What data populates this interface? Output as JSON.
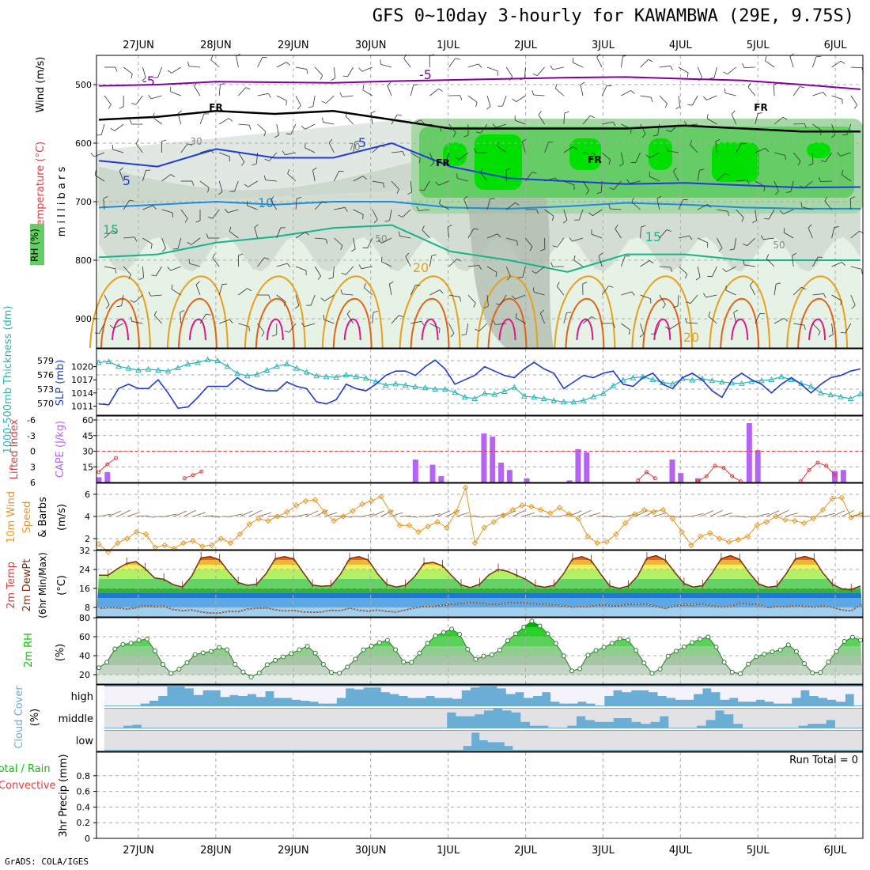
{
  "title": "GFS 0~10day 3-hourly for KAWAMBWA (29E, 9.75S)",
  "footer": "GrADS: COLA/IGES",
  "dates": [
    "27JUN",
    "28JUN",
    "29JUN",
    "30JUN",
    "1JUL",
    "2JUL",
    "3JUL",
    "4JUL",
    "5JUL",
    "6JUL"
  ],
  "colors": {
    "rh_dark": "#00e000",
    "rh_mid": "#66cc66",
    "rh_light": "#a8d8a8",
    "grey1": "#c8d4c8",
    "grey2": "#a9b8a9",
    "temp_m5": "#8000a0",
    "temp_5": "#1e3cdc",
    "temp_10": "#1e8cdc",
    "temp_15": "#14b48c",
    "temp_20": "#e6a01e",
    "temp_25": "#e06414",
    "temp_30": "#e0148c",
    "slp": "#1e3cc8",
    "thick": "#2ab4b4",
    "cape": "#b464f0",
    "li": "#e03c3c",
    "wind": "#e6961e",
    "barb": "#806040",
    "cloud": "#6aaed6",
    "rh2m": "#00c800"
  },
  "chart_data": [
    {
      "id": "cross-section",
      "type": "heatmap",
      "ylabel": "(millibars)",
      "side_labels": [
        "Wind (m/s)",
        "Temperature (°C)",
        "RH (%)"
      ],
      "y_ticks": [
        500,
        600,
        700,
        800,
        900
      ],
      "ylim": [
        450,
        950
      ],
      "y_scale": "linear-inverted",
      "contour_labels": [
        "-5",
        "5",
        "10",
        "15",
        "20",
        "FR",
        "30",
        "50",
        "70"
      ],
      "isotherm_levels_mb": {
        "-5": [
          502,
          500,
          495,
          496,
          497,
          494,
          492,
          490,
          488,
          487,
          490,
          493,
          500,
          508
        ],
        "5": [
          630,
          640,
          610,
          625,
          625,
          600,
          640,
          660,
          665,
          670,
          668,
          672,
          676,
          675
        ],
        "10": [
          710,
          705,
          700,
          705,
          700,
          700,
          710,
          712,
          708,
          702,
          705,
          710,
          712,
          712
        ],
        "15": [
          795,
          790,
          770,
          760,
          745,
          740,
          785,
          800,
          820,
          790,
          790,
          800,
          800,
          800
        ],
        "FR": [
          560,
          555,
          545,
          550,
          545,
          560,
          575,
          575,
          575,
          575,
          570,
          575,
          580,
          580
        ]
      },
      "x_ticks": [
        "27JUN",
        "28JUN",
        "29JUN",
        "30JUN",
        "1JUL",
        "2JUL",
        "3JUL",
        "4JUL",
        "5JUL",
        "6JUL"
      ]
    },
    {
      "id": "slp-thickness",
      "type": "line",
      "ylabel_left": "1000-500mb Thickness (dm)",
      "ylabel_right": "SLP (mb)",
      "left_ticks": [
        570,
        573,
        576,
        579
      ],
      "right_ticks": [
        1011,
        1014,
        1017,
        1020
      ],
      "series": [
        {
          "name": "SLP",
          "axis": "right",
          "ylim": [
            1010,
            1023
          ],
          "values": [
            1011.5,
            1011.3,
            1015,
            1016,
            1015,
            1015,
            1017,
            1014,
            1010.5,
            1010.8,
            1013,
            1015.5,
            1015.5,
            1015.5,
            1017.5,
            1016,
            1015,
            1014.5,
            1014.5,
            1016.5,
            1015.5,
            1015,
            1012,
            1011.5,
            1012.5,
            1016,
            1015,
            1014.5,
            1016,
            1018,
            1019,
            1019,
            1018,
            1020,
            1021.5,
            1019.5,
            1016,
            1017,
            1018,
            1020,
            1019,
            1018,
            1017.5,
            1019.5,
            1021,
            1019.5,
            1018.5,
            1015,
            1016.5,
            1018,
            1017.5,
            1018.5,
            1019,
            1016,
            1015.5,
            1017.5,
            1018.5,
            1016,
            1015,
            1017.5,
            1018.5,
            1017,
            1014.5,
            1013,
            1017,
            1018.5,
            1017,
            1016,
            1014,
            1016,
            1017.5,
            1016,
            1014,
            1016,
            1017.5,
            1018,
            1019,
            1019.5
          ]
        },
        {
          "name": "Thickness",
          "axis": "left",
          "ylim": [
            568.5,
            580.5
          ],
          "values": [
            578.6,
            578.8,
            577.8,
            577.4,
            577.0,
            577.2,
            577.0,
            576.8,
            577.5,
            578.3,
            578.6,
            579.2,
            579.0,
            577.8,
            576.3,
            575.8,
            576.1,
            577.0,
            577.8,
            578.3,
            577.4,
            576.6,
            575.8,
            575.6,
            575.5,
            576.0,
            575.6,
            575.3,
            574.6,
            573.8,
            574.1,
            573.8,
            573.5,
            573.3,
            573.0,
            573.0,
            572.3,
            571.3,
            571.0,
            572.1,
            571.9,
            572.5,
            573.4,
            571.5,
            571.3,
            571.0,
            570.6,
            570.3,
            570.3,
            570.6,
            571.4,
            572.1,
            573.7,
            574.9,
            575.4,
            575.6,
            575.0,
            574.4,
            574.1,
            575.2,
            574.9,
            575.2,
            574.8,
            574.5,
            574.3,
            574.2,
            574.6,
            574.8,
            575.0,
            575.6,
            575.0,
            574.2,
            573.6,
            572.2,
            571.8,
            571.4,
            571.0,
            572.0
          ]
        }
      ]
    },
    {
      "id": "li-cape",
      "type": "bar",
      "ylabel_left": "Lifted Index",
      "ylabel_right": "CAPE (J/kg)",
      "left_ticks": [
        "-6",
        "-3",
        "0",
        "3",
        "6"
      ],
      "right_ticks": [
        15,
        30,
        45,
        60
      ],
      "cape_ylim": [
        0,
        60
      ],
      "cape_values": [
        5,
        10,
        0,
        0,
        0,
        0,
        0,
        0,
        0,
        0,
        0,
        0,
        0,
        0,
        0,
        0,
        0,
        0,
        0,
        0,
        0,
        0,
        0,
        0,
        0,
        0,
        0,
        0,
        0,
        0,
        0,
        0,
        0,
        0,
        0,
        0,
        0,
        22,
        0,
        17,
        6,
        0,
        0,
        0,
        0,
        47,
        44,
        19,
        12,
        0,
        4,
        0,
        0,
        0,
        0,
        2,
        32,
        29,
        0,
        0,
        0,
        0,
        0,
        0,
        0,
        0,
        0,
        22,
        9,
        0,
        4,
        0,
        0,
        0,
        0,
        0,
        57,
        31,
        0,
        0,
        0,
        0,
        0,
        0,
        0,
        0,
        11,
        12,
        0,
        0
      ],
      "li_ylim": [
        6,
        -6
      ],
      "li_segments": [
        {
          "start": 0,
          "values": [
            4,
            2.5,
            1.3
          ]
        },
        {
          "start": 10,
          "values": [
            5.2,
            4.6,
            3.9
          ]
        },
        {
          "start": 63,
          "values": [
            5.6,
            4,
            5.2
          ]
        },
        {
          "start": 70,
          "values": [
            5.8,
            4.8,
            2.8,
            3.2,
            4.8,
            5.8
          ]
        },
        {
          "start": 82,
          "values": [
            5.8,
            3.6,
            2.2,
            2.8,
            4.6
          ]
        }
      ],
      "zero_line": 0
    },
    {
      "id": "wind10m",
      "type": "line",
      "ylabel": "10m Wind Speed (m/s) & Barbs",
      "y_ticks": [
        2,
        4,
        6
      ],
      "ylim": [
        1,
        7
      ],
      "values": [
        1.5,
        0.8,
        1.6,
        2.0,
        2.6,
        2.4,
        1.2,
        1.4,
        1.1,
        1.6,
        1.8,
        1.3,
        1.4,
        2.0,
        1.6,
        2.4,
        3.3,
        3.8,
        3.6,
        4.0,
        4.4,
        5.0,
        5.4,
        5.5,
        4.4,
        3.6,
        4.0,
        4.5,
        5.1,
        5.4,
        5.8,
        4.4,
        3.2,
        3.2,
        2.6,
        3.1,
        3.5,
        3.0,
        4.4,
        6.6,
        1.6,
        3.0,
        3.5,
        4.1,
        4.6,
        5.0,
        4.9,
        4.6,
        4.3,
        4.8,
        4.2,
        3.8,
        2.2,
        1.6,
        1.7,
        2.4,
        3.4,
        4.2,
        4.6,
        4.4,
        4.6,
        3.8,
        2.6,
        1.4,
        2.2,
        2.5,
        2.0,
        1.7,
        1.9,
        2.2,
        3.2,
        3.5,
        4.0,
        3.7,
        3.6,
        3.4,
        3.8,
        4.6,
        5.6,
        5.7,
        3.9,
        4.2
      ]
    },
    {
      "id": "temp2m",
      "type": "area",
      "ylabel": "2m Temp 2m DewPt (6hr Min/Max) (°C)",
      "y_ticks": [
        8,
        16,
        24,
        32
      ],
      "ylim": [
        4,
        32
      ],
      "temp_values": [
        21.6,
        21.6,
        24.3,
        26.5,
        27.3,
        24.3,
        20.4,
        19.9,
        17.6,
        16.6,
        21.2,
        28.9,
        29.4,
        28.0,
        22.9,
        18.5,
        17.3,
        17.8,
        22.2,
        28.6,
        29.4,
        28.4,
        22.7,
        17.4,
        16.9,
        17.2,
        21.9,
        28.6,
        29.4,
        28.0,
        22.2,
        17.7,
        16.6,
        17.3,
        21.0,
        26.5,
        27.0,
        25.5,
        21.3,
        17.5,
        16.4,
        17.8,
        21.7,
        24.0,
        23.2,
        21.5,
        19.8,
        17.2,
        16.5,
        17.3,
        22.0,
        28.4,
        29.4,
        27.8,
        22.2,
        17.1,
        16.0,
        17.0,
        21.2,
        28.8,
        29.8,
        27.9,
        22.8,
        18.1,
        16.6,
        17.2,
        22.4,
        28.5,
        29.8,
        28.2,
        22.7,
        18.0,
        16.5,
        17.0,
        22.2,
        28.5,
        29.5,
        28.3,
        22.3,
        17.7,
        15.8,
        15.5,
        17.0
      ],
      "dew_values": [
        7.6,
        7.9,
        7.8,
        7.3,
        7.8,
        8.8,
        8.4,
        8.5,
        7.1,
        6.7,
        6.9,
        6.1,
        5.6,
        5.7,
        6.3,
        6.2,
        7.3,
        7.6,
        7.8,
        7.0,
        6.5,
        6.7,
        6.1,
        5.9,
        6.1,
        6.8,
        6.6,
        7.7,
        6.8,
        6.4,
        6.9,
        6.3,
        6.1,
        6.9,
        7.8,
        8.4,
        8.4,
        8.9,
        9.4,
        9.6,
        10.0,
        9.8,
        9.3,
        9.4,
        9.9,
        10.1,
        9.9,
        9.5,
        9.3,
        9.0,
        8.7,
        8.1,
        8.4,
        8.5,
        9.1,
        8.8,
        8.6,
        9.4,
        9.5,
        9.3,
        8.4,
        7.6,
        8.6,
        9.2,
        9.1,
        9.6,
        8.7,
        8.2,
        8.5,
        9.8,
        9.5,
        9.2,
        7.9,
        8.4,
        8.2,
        8.8,
        8.4,
        8.1,
        8.6,
        8.0,
        6.9,
        6.6,
        9.2
      ]
    },
    {
      "id": "rh2m",
      "type": "area",
      "ylabel": "2m RH (%)",
      "y_ticks": [
        20,
        40,
        60,
        80
      ],
      "ylim": [
        10,
        80
      ],
      "values": [
        27.3,
        33.0,
        47.1,
        51.9,
        53.1,
        56.2,
        57.6,
        45.0,
        30.7,
        21.5,
        25.8,
        32.6,
        41.2,
        43.0,
        44.5,
        48.6,
        46.2,
        30.9,
        22.8,
        17.5,
        21.9,
        30.5,
        35.1,
        38.8,
        42.2,
        46.3,
        49.9,
        42.7,
        30.9,
        22.4,
        21.6,
        28.0,
        36.4,
        46.1,
        50.0,
        53.8,
        56.2,
        46.3,
        33.3,
        32.9,
        42.8,
        53.0,
        60.9,
        64.5,
        68.0,
        62.5,
        46.8,
        36.3,
        39.5,
        41.0,
        45.9,
        55.7,
        63.1,
        70.0,
        76.4,
        71.3,
        63.0,
        52.9,
        39.7,
        24.0,
        26.2,
        40.6,
        45.5,
        48.8,
        53.0,
        57.8,
        56.5,
        45.6,
        32.3,
        21.5,
        25.8,
        39.5,
        44.8,
        49.3,
        53.9,
        57.4,
        59.7,
        49.1,
        33.1,
        22.6,
        21.0,
        31.1,
        38.9,
        41.7,
        44.1,
        46.0,
        51.4,
        44.3,
        31.6,
        22.0,
        22.4,
        33.3,
        44.4,
        55.0,
        59.5,
        56.3
      ]
    },
    {
      "id": "cloud",
      "type": "bar",
      "ylabel": "Cloud Cover (%)",
      "levels": [
        "high",
        "middle",
        "low"
      ],
      "high": [
        0,
        0,
        0,
        0,
        10,
        25,
        50,
        100,
        100,
        90,
        55,
        80,
        80,
        45,
        55,
        50,
        60,
        45,
        75,
        40,
        40,
        30,
        25,
        20,
        10,
        10,
        40,
        90,
        85,
        95,
        95,
        70,
        60,
        50,
        40,
        40,
        50,
        40,
        40,
        35,
        80,
        95,
        100,
        100,
        90,
        60,
        70,
        40,
        50,
        70,
        20,
        10,
        10,
        20,
        10,
        0,
        50,
        80,
        70,
        80,
        80,
        70,
        50,
        40,
        30,
        30,
        60,
        90,
        70,
        30,
        40,
        20,
        20,
        30,
        20,
        10,
        10,
        40,
        80,
        50,
        40,
        30,
        20,
        60,
        0
      ],
      "middle": [
        0,
        0,
        10,
        15,
        0,
        0,
        0,
        0,
        0,
        0,
        0,
        0,
        0,
        0,
        0,
        0,
        0,
        0,
        0,
        0,
        0,
        0,
        0,
        0,
        0,
        0,
        0,
        0,
        0,
        0,
        0,
        0,
        0,
        0,
        0,
        0,
        0,
        80,
        60,
        60,
        70,
        90,
        100,
        90,
        80,
        30,
        10,
        10,
        0,
        0,
        10,
        60,
        40,
        30,
        30,
        50,
        50,
        30,
        20,
        30,
        60,
        0,
        0,
        0,
        10,
        40,
        90,
        70,
        20,
        0,
        0,
        0,
        0,
        0,
        0,
        10,
        20,
        20,
        40,
        0,
        0,
        0
      ],
      "low": [
        0,
        0,
        0,
        0,
        0,
        0,
        0,
        0,
        0,
        0,
        0,
        0,
        0,
        0,
        0,
        0,
        0,
        0,
        0,
        0,
        0,
        0,
        0,
        0,
        0,
        0,
        0,
        0,
        0,
        0,
        0,
        0,
        0,
        0,
        0,
        0,
        0,
        0,
        0,
        0,
        0,
        0,
        0,
        20,
        90,
        50,
        40,
        40,
        20,
        0,
        0,
        0,
        0,
        0,
        0,
        0,
        0,
        0,
        0,
        0,
        0,
        0,
        0,
        0,
        0,
        0,
        0,
        0,
        0,
        0,
        0,
        0,
        0,
        0,
        0,
        0,
        0,
        0,
        0,
        0,
        0,
        0,
        0,
        0,
        0,
        0,
        0,
        0,
        0,
        0,
        0
      ]
    },
    {
      "id": "precip",
      "type": "bar",
      "ylabel": "3hr Precip (mm)",
      "side_labels": [
        "Total / Rain",
        "Convective"
      ],
      "y_ticks": [
        0,
        0.2,
        0.4,
        0.6,
        0.8
      ],
      "ylim": [
        0,
        1
      ],
      "values": [],
      "annotation": "Run Total = 0"
    }
  ]
}
